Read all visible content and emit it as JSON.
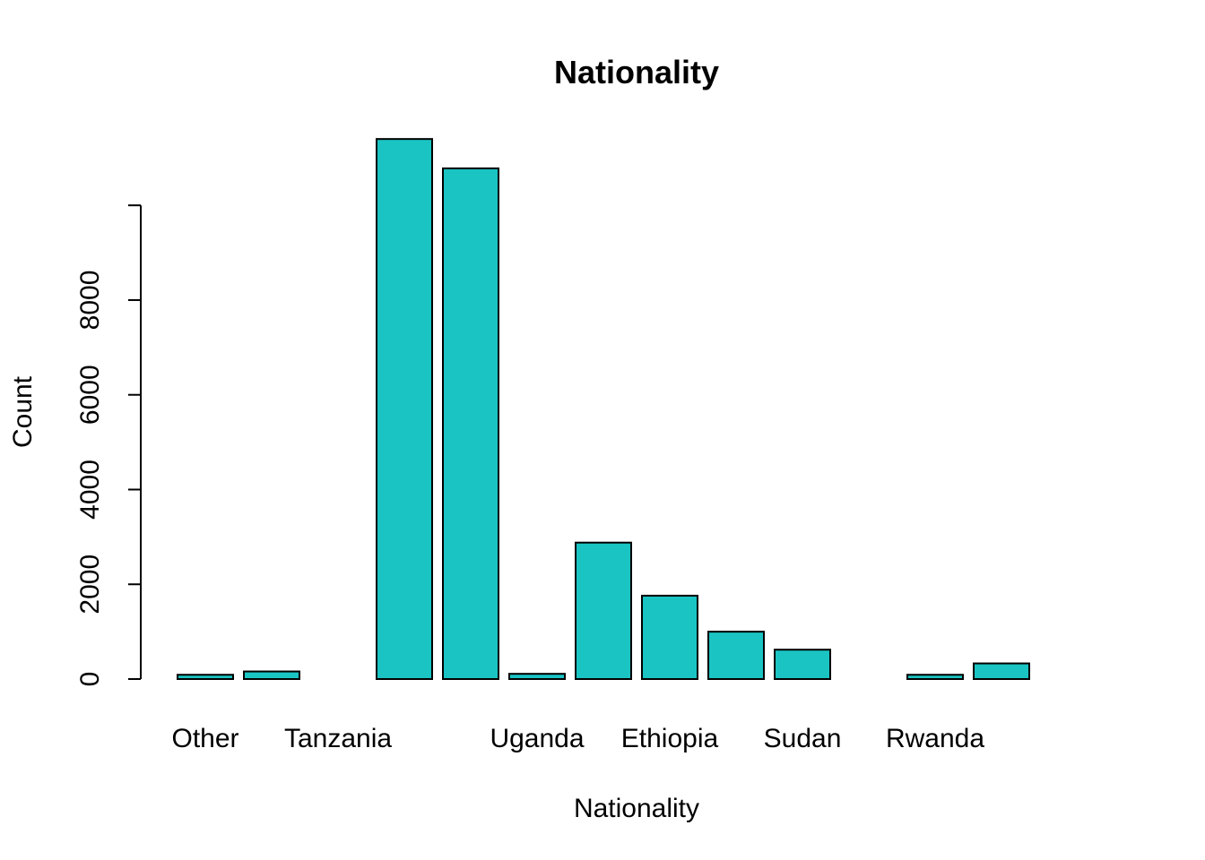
{
  "chart_data": {
    "type": "bar",
    "title": "Nationality",
    "xlabel": "Nationality",
    "ylabel": "Count",
    "categories": [
      "Other",
      "",
      "Tanzania",
      "",
      "",
      "Uganda",
      "",
      "Ethiopia",
      "",
      "Sudan",
      "",
      "Rwanda",
      "",
      ""
    ],
    "values": [
      90,
      160,
      0,
      11400,
      10780,
      110,
      2880,
      1760,
      1000,
      620,
      0,
      90,
      330,
      0
    ],
    "y_ticks": [
      0,
      2000,
      4000,
      6000,
      8000,
      10000
    ],
    "y_tick_labels": [
      "0",
      "2000",
      "4000",
      "6000",
      "8000",
      ""
    ],
    "ylim": [
      0,
      11400
    ],
    "bar_color": "#1AC4C3",
    "grid": false
  }
}
